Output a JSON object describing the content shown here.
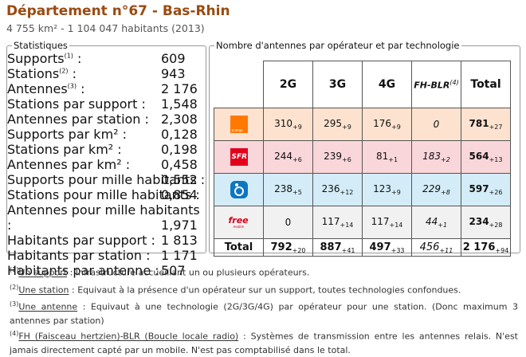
{
  "header": {
    "title": "Département n°67 - Bas-Rhin",
    "subtitle": "4 755 km² - 1 104 047 habitants (2013)"
  },
  "stats": {
    "legend": "Statistiques",
    "groups": [
      [
        {
          "label": "Supports",
          "sup": "(1)",
          "after": " :",
          "value": "609"
        },
        {
          "label": "Stations",
          "sup": "(2)",
          "after": " :",
          "value": "943"
        },
        {
          "label": "Antennes",
          "sup": "(3)",
          "after": " :",
          "value": "2 176"
        },
        {
          "label": "Stations par support :",
          "value": "1,548"
        },
        {
          "label": "Antennes par station :",
          "value": "2,308"
        }
      ],
      [
        {
          "label": "Supports par km² :",
          "value": "0,128"
        },
        {
          "label": "Stations par km² :",
          "value": "0,198"
        },
        {
          "label": "Antennes par km² :",
          "value": "0,458"
        }
      ],
      [
        {
          "label": "Supports pour mille habitants :",
          "value": "0,552"
        },
        {
          "label": "Stations pour mille habitants :",
          "value": "0,854"
        },
        {
          "label": "Antennes pour mille habitants :",
          "value": "1,971"
        }
      ],
      [
        {
          "label": "Habitants par support :",
          "value": "1 813"
        },
        {
          "label": "Habitants par station :",
          "value": "1 171"
        },
        {
          "label": "Habitants par antenne :",
          "value": "507"
        }
      ]
    ]
  },
  "table": {
    "legend": "Nombre d'antennes par opérateur et par technologie",
    "columns": [
      {
        "text": "2G"
      },
      {
        "text": "3G"
      },
      {
        "text": "4G"
      },
      {
        "text": "FH-BLR",
        "sup": "(4)"
      },
      {
        "text": "Total"
      }
    ],
    "rows": [
      {
        "logo": "orange",
        "logo_text": "orange",
        "cells": [
          {
            "v": "310",
            "d": "+9"
          },
          {
            "v": "295",
            "d": "+9"
          },
          {
            "v": "176",
            "d": "+9"
          },
          {
            "v": "0"
          },
          {
            "v": "781",
            "d": "+27"
          }
        ]
      },
      {
        "logo": "sfr",
        "logo_text": "SFR",
        "cells": [
          {
            "v": "244",
            "d": "+6"
          },
          {
            "v": "239",
            "d": "+6"
          },
          {
            "v": "81",
            "d": "+1"
          },
          {
            "v": "183",
            "d": "+2"
          },
          {
            "v": "564",
            "d": "+13"
          }
        ]
      },
      {
        "logo": "bouygues",
        "cells": [
          {
            "v": "238",
            "d": "+5"
          },
          {
            "v": "236",
            "d": "+12"
          },
          {
            "v": "123",
            "d": "+9"
          },
          {
            "v": "229",
            "d": "+8"
          },
          {
            "v": "597",
            "d": "+26"
          }
        ]
      },
      {
        "logo": "free",
        "logo_text": "free",
        "logo_sub": "mobile",
        "cells": [
          {
            "v": "0"
          },
          {
            "v": "117",
            "d": "+14"
          },
          {
            "v": "117",
            "d": "+14"
          },
          {
            "v": "44",
            "d": "+1"
          },
          {
            "v": "234",
            "d": "+28"
          }
        ]
      }
    ],
    "total": {
      "label": "Total",
      "cells": [
        {
          "v": "792",
          "d": "+20"
        },
        {
          "v": "887",
          "d": "+41"
        },
        {
          "v": "497",
          "d": "+33"
        },
        {
          "v": "456",
          "d": "+11"
        },
        {
          "v": "2 176",
          "d": "+94"
        }
      ]
    }
  },
  "footnotes": [
    {
      "num": "(1)",
      "term": "Un support",
      "text": " : Infrastructure accueillant un ou plusieurs opérateurs."
    },
    {
      "num": "(2)",
      "term": "Une station",
      "text": " : Equivaut à la présence d'un opérateur sur un support, toutes technologies confondues."
    },
    {
      "num": "(3)",
      "term": "Une antenne",
      "text": " : Equivaut à une technologie (2G/3G/4G) par opérateur pour une station. (Donc maximum 3 antennes par station)"
    },
    {
      "num": "(4)",
      "term": "FH (Faisceau hertzien)-BLR (Boucle locale radio)",
      "text": " : Systèmes de transmission entre les antennes relais. N'est jamais directement capté par un mobile. N'est pas comptabilisé dans le total."
    }
  ]
}
